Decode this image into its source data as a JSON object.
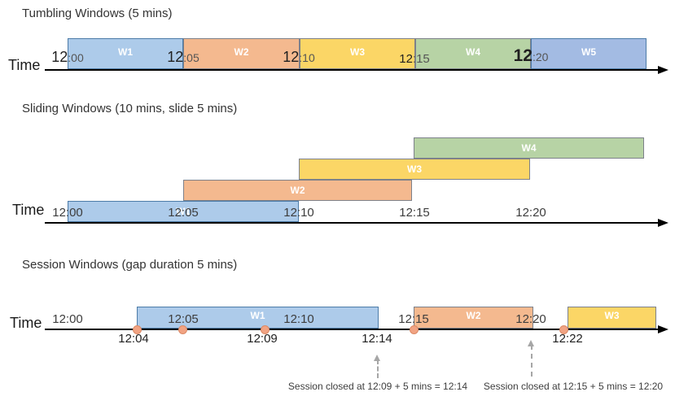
{
  "diagrams": [
    {
      "title": "Tumbling Windows (5 mins)",
      "axis_label": "Time",
      "ticks": [
        "12:00",
        "12:05",
        "12:10",
        "12:15",
        "12:20"
      ],
      "windows": [
        {
          "label": "W1",
          "start": "12:00",
          "end": "12:05",
          "color": "blue"
        },
        {
          "label": "W2",
          "start": "12:05",
          "end": "12:10",
          "color": "orange"
        },
        {
          "label": "W3",
          "start": "12:10",
          "end": "12:15",
          "color": "yellow"
        },
        {
          "label": "W4",
          "start": "12:15",
          "end": "12:20",
          "color": "green"
        },
        {
          "label": "W5",
          "start": "12:20",
          "end": "12:25",
          "color": "blue2"
        }
      ]
    },
    {
      "title": "Sliding Windows (10 mins, slide 5 mins)",
      "axis_label": "Time",
      "ticks": [
        "12:00",
        "12:05",
        "12:10",
        "12:15",
        "12:20"
      ],
      "windows": [
        {
          "label": "W1",
          "start": "12:00",
          "end": "12:10",
          "color": "blue"
        },
        {
          "label": "W2",
          "start": "12:05",
          "end": "12:15",
          "color": "orange"
        },
        {
          "label": "W3",
          "start": "12:10",
          "end": "12:20",
          "color": "yellow"
        },
        {
          "label": "W4",
          "start": "12:15",
          "end": "12:25",
          "color": "green"
        }
      ]
    },
    {
      "title": "Session Windows (gap duration 5 mins)",
      "axis_label": "Time",
      "ticks": [
        "12:00",
        "12:05",
        "12:10",
        "12:15",
        "12:20"
      ],
      "windows": [
        {
          "label": "W1",
          "start": "12:04",
          "end": "12:14",
          "color": "blue"
        },
        {
          "label": "W2",
          "start": "12:15",
          "end": "12:20",
          "color": "orange"
        },
        {
          "label": "W3",
          "start": "12:22",
          "end": "",
          "color": "yellow"
        }
      ],
      "event_labels": [
        "12:04",
        "12:09",
        "12:14",
        "12:22"
      ],
      "annotations": [
        "Session closed at 12:09 + 5 mins = 12:14",
        "Session closed at 12:15 + 5 mins = 12:20"
      ]
    }
  ],
  "colors": {
    "blue": "#ADCBEA",
    "blue2": "#A3BBE3",
    "orange": "#F4B98F",
    "yellow": "#FBD666",
    "green": "#B7D3A5",
    "blue_border": "#4D7CA8",
    "box_border": "#7D818A",
    "event_dot": "#F1A383",
    "event_dot_border": "#DC8A66",
    "timeline": "#000000",
    "annotation_arrow": "#A6A6A6"
  }
}
